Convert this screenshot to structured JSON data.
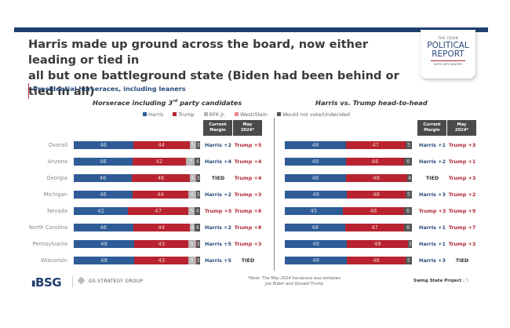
{
  "header": {
    "title_line1": "Harris made up ground across the board, now either leading or tied in",
    "title_line2": "all but one battleground state (Biden had been behind or tied in all)",
    "logo": {
      "line1": "THE COOK",
      "line2": "POLITICAL",
      "line3": "REPORT",
      "line4": "WITH AMY WALTER"
    }
  },
  "subtitle": "Presidential horseraces, including leaners",
  "colors": {
    "harris": "#2f5c97",
    "trump": "#b8232f",
    "rfk": "#b5b5b5",
    "west_stein": "#e8848c",
    "undecided": "#555555",
    "harris_text": "#2a4a7a",
    "trump_text": "#b02a37",
    "tied_text": "#333333"
  },
  "legend": [
    {
      "label": "Harris",
      "color": "#2f5c97"
    },
    {
      "label": "Trump",
      "color": "#b8232f"
    },
    {
      "label": "RFK Jr.",
      "color": "#b5b5b5"
    },
    {
      "label": "West/Stein",
      "color": "#e8848c"
    },
    {
      "label": "Would not vote/Undecided",
      "color": "#555555"
    }
  ],
  "column_headers": {
    "current_line1": "Current",
    "current_line2": "Margin",
    "may_line1": "May",
    "may_line2": "2024*"
  },
  "chart_data": [
    {
      "type": "bar",
      "stacked": true,
      "orientation": "horizontal",
      "title": "Horserace including 3rd party candidates",
      "title_main": "Horserace including 3",
      "title_sup": "rd",
      "title_rest": " party candidates",
      "categories": [
        "Overall",
        "Arizona",
        "Georgia",
        "Michigan",
        "Nevada",
        "North Carolina",
        "Pennsylvania",
        "Wisconsin"
      ],
      "series": [
        {
          "name": "Harris",
          "values": [
            46,
            46,
            46,
            46,
            42,
            46,
            48,
            48
          ]
        },
        {
          "name": "Trump",
          "values": [
            44,
            42,
            46,
            44,
            47,
            44,
            43,
            43
          ]
        },
        {
          "name": "RFK Jr.",
          "values": [
            5,
            7,
            4,
            6,
            5,
            4,
            5,
            5
          ]
        },
        {
          "name": "West/Stein",
          "values": [
            0,
            0,
            1,
            0,
            0,
            0,
            1,
            1
          ]
        },
        {
          "name": "Would not vote/Undecided",
          "values": [
            3,
            4,
            3,
            3,
            4,
            4,
            3,
            3
          ]
        }
      ],
      "current_margin": [
        "Harris +2",
        "Harris +4",
        "TIED",
        "Harris +2",
        "Trump +5",
        "Harris +2",
        "Harris +5",
        "Harris +5"
      ],
      "may_2024": [
        "Trump +5",
        "Trump +4",
        "Trump +4",
        "Trump +3",
        "Trump +8",
        "Trump +8",
        "Trump +3",
        "TIED"
      ]
    },
    {
      "type": "bar",
      "stacked": true,
      "orientation": "horizontal",
      "title": "Harris vs. Trump head-to-head",
      "categories": [
        "Overall",
        "Arizona",
        "Georgia",
        "Michigan",
        "Nevada",
        "North Carolina",
        "Pennsylvania",
        "Wisconsin"
      ],
      "series": [
        {
          "name": "Harris",
          "values": [
            48,
            48,
            48,
            49,
            45,
            48,
            49,
            49
          ]
        },
        {
          "name": "Trump",
          "values": [
            47,
            46,
            48,
            46,
            48,
            47,
            48,
            46
          ]
        },
        {
          "name": "Would not vote/Undecided",
          "values": [
            5,
            6,
            4,
            5,
            6,
            6,
            3,
            5
          ]
        }
      ],
      "current_margin": [
        "Harris +1",
        "Harris +2",
        "TIED",
        "Harris +3",
        "Trump +3",
        "Harris +1",
        "Harris +1",
        "Harris +3"
      ],
      "may_2024": [
        "Trump +3",
        "Trump +1",
        "Trump +3",
        "Trump +2",
        "Trump +9",
        "Trump +7",
        "Trump +3",
        "TIED"
      ]
    }
  ],
  "footer": {
    "bsg": "BSG",
    "gs": "GS STRATEGY GROUP",
    "note_line1": "*Note: The May 2024 horserace was between",
    "note_line2": "Joe Biden and Donald Trump",
    "project": "Swing State Project",
    "sep": "|",
    "page": "3"
  }
}
